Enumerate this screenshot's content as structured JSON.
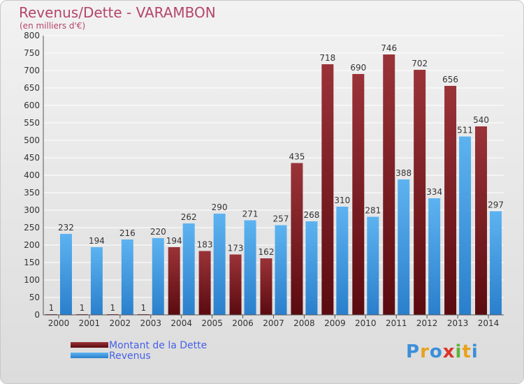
{
  "header": {
    "title": "Revenus/Dette - VARAMBON",
    "subtitle": "(en milliers d'€)"
  },
  "legend": {
    "dette_label": "Montant de la Dette",
    "revenus_label": "Revenus"
  },
  "logo": {
    "text": "Proxiti"
  },
  "colors": {
    "dette": "#7a1e22",
    "revenus": "#3b9ae6",
    "title": "#b4456a",
    "legend_text": "#4660e6"
  },
  "chart_data": {
    "type": "bar",
    "title": "Revenus/Dette - VARAMBON",
    "ylabel": "(en milliers d'€)",
    "xlabel": "",
    "categories": [
      "2000",
      "2001",
      "2002",
      "2003",
      "2004",
      "2005",
      "2006",
      "2007",
      "2008",
      "2009",
      "2010",
      "2011",
      "2012",
      "2013",
      "2014"
    ],
    "series": [
      {
        "name": "Montant de la Dette",
        "values": [
          1,
          1,
          1,
          1,
          194,
          183,
          173,
          162,
          435,
          718,
          690,
          746,
          702,
          656,
          540
        ]
      },
      {
        "name": "Revenus",
        "values": [
          232,
          194,
          216,
          220,
          262,
          290,
          271,
          257,
          268,
          310,
          281,
          388,
          334,
          511,
          297
        ]
      }
    ],
    "ylim": [
      0,
      800
    ],
    "yticks": [
      0,
      50,
      100,
      150,
      200,
      250,
      300,
      350,
      400,
      450,
      500,
      550,
      600,
      650,
      700,
      750,
      800
    ],
    "grid": true,
    "legend_position": "bottom-left"
  }
}
